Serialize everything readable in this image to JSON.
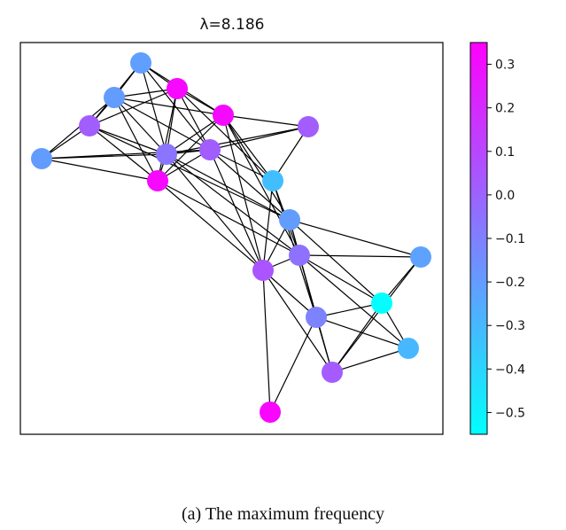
{
  "title": "λ=8.186",
  "caption": "(a) The maximum frequency",
  "colorbar": {
    "min": -0.55,
    "max": 0.35,
    "ticks": [
      {
        "value": 0.3,
        "label": "0.3"
      },
      {
        "value": 0.2,
        "label": "0.2"
      },
      {
        "value": 0.1,
        "label": "0.1"
      },
      {
        "value": 0.0,
        "label": "0.0"
      },
      {
        "value": -0.1,
        "label": "−0.1"
      },
      {
        "value": -0.2,
        "label": "−0.2"
      },
      {
        "value": -0.3,
        "label": "−0.3"
      },
      {
        "value": -0.4,
        "label": "−0.4"
      },
      {
        "value": -0.5,
        "label": "−0.5"
      }
    ],
    "colormap": "cool",
    "low_color": "#00ffff",
    "high_color": "#ff00ff"
  },
  "node_values": [
    -0.21,
    0.32,
    -0.2,
    0.02,
    0.31,
    0.02,
    -0.2,
    -0.06,
    0.32,
    0.02,
    -0.32,
    -0.2,
    0.05,
    -0.05,
    -0.22,
    -0.11,
    -0.55,
    -0.3,
    0.03,
    0.33,
    -0.04
  ]
}
